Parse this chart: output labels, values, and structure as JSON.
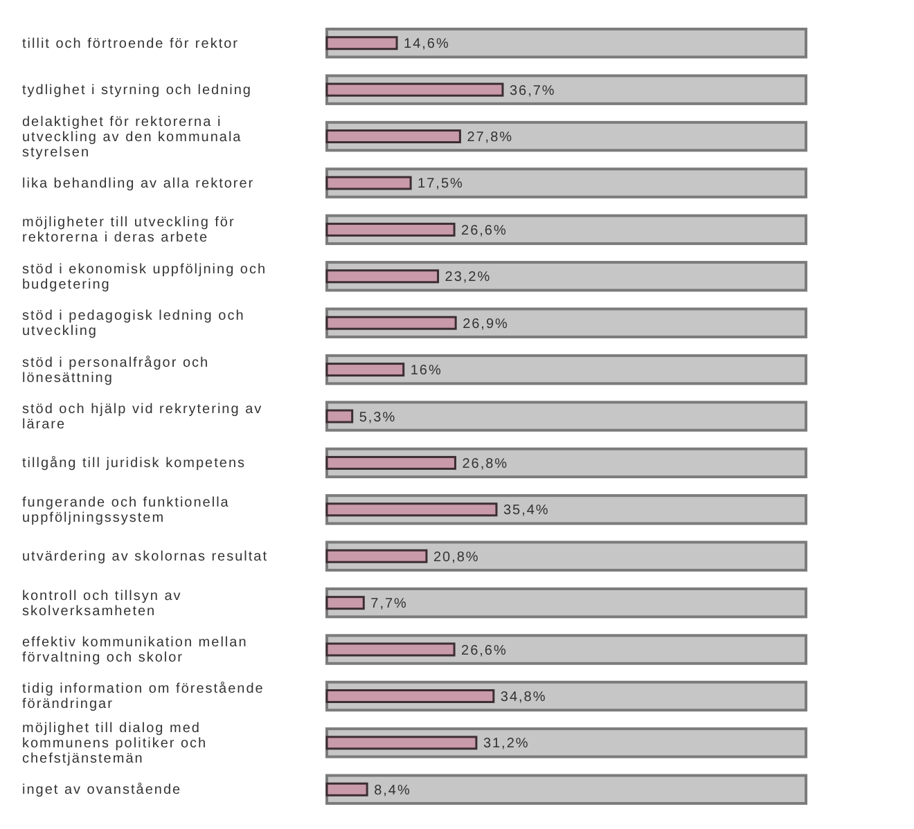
{
  "chart_data": {
    "type": "bar",
    "orientation": "horizontal",
    "categories": [
      "tillit och förtroende för rektor",
      "tydlighet i styrning och ledning",
      "delaktighet för rektorerna i utveckling av den kommunala styrelsen",
      "lika behandling av alla rektorer",
      "möjligheter till utveckling för rektorerna i deras arbete",
      "stöd i ekonomisk uppföljning och budgetering",
      "stöd i pedagogisk ledning och utveckling",
      "stöd i personalfrågor och lönesättning",
      "stöd och hjälp vid rekrytering av lärare",
      "tillgång till juridisk kompetens",
      "fungerande och funktionella uppföljningssystem",
      "utvärdering av skolornas resultat",
      "kontroll och tillsyn av skolverksamheten",
      "effektiv kommunikation mellan förvaltning och skolor",
      "tidig information om förestående förändringar",
      "möjlighet till dialog med kommunens politiker och chefstjänstemän",
      "inget av ovanstående"
    ],
    "series": [
      {
        "color": "#c6c6c6",
        "values": [
          100,
          100,
          100,
          100,
          100,
          100,
          100,
          100,
          100,
          100,
          100,
          100,
          100,
          100,
          100,
          100,
          100
        ]
      },
      {
        "color": "#c99aaa",
        "values": [
          14.6,
          36.7,
          27.8,
          17.5,
          26.6,
          23.2,
          26.9,
          16,
          5.3,
          26.8,
          35.4,
          20.8,
          7.7,
          26.6,
          34.8,
          31.2,
          8.4
        ],
        "value_labels": [
          "14,6%",
          "36,7%",
          "27,8%",
          "17,5%",
          "26,6%",
          "23,2%",
          "26,9%",
          "16%",
          "5,3%",
          "26,8%",
          "35,4%",
          "20,8%",
          "7,7%",
          "26,6%",
          "34,8%",
          "31,2%",
          "8,4%"
        ]
      }
    ],
    "tick_labels": "y"
  }
}
